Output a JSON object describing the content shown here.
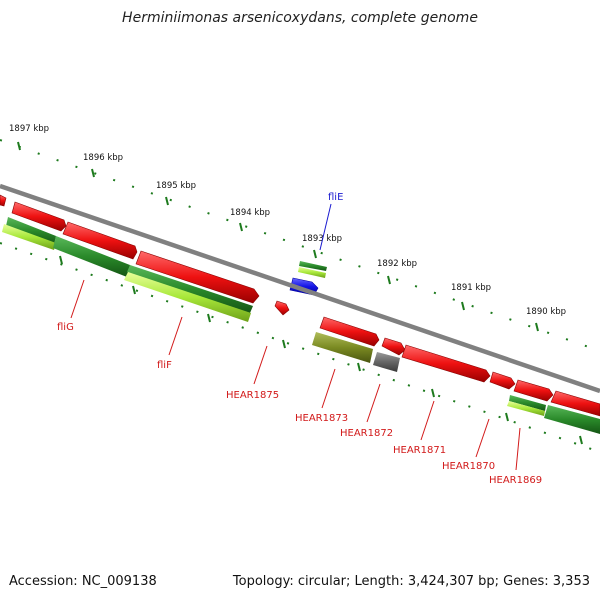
{
  "title": "Herminiimonas arsenicoxydans, complete genome",
  "accession": "Accession: NC_009138",
  "summary": "Topology: circular; Length: 3,424,307 bp; Genes: 3,353",
  "kbp_labels": [
    "1897 kbp",
    "1896 kbp",
    "1895 kbp",
    "1894 kbp",
    "1893 kbp",
    "1892 kbp",
    "1891 kbp",
    "1890 kbp"
  ],
  "gene_labels": [
    {
      "text": "fliE",
      "color": "#1b1bd0"
    },
    {
      "text": "fliG",
      "color": "#d21a1a"
    },
    {
      "text": "fliF",
      "color": "#d21a1a"
    },
    {
      "text": "HEAR1875",
      "color": "#d21a1a"
    },
    {
      "text": "HEAR1873",
      "color": "#d21a1a"
    },
    {
      "text": "HEAR1872",
      "color": "#d21a1a"
    },
    {
      "text": "HEAR1871",
      "color": "#d21a1a"
    },
    {
      "text": "HEAR1870",
      "color": "#d21a1a"
    },
    {
      "text": "HEAR1869",
      "color": "#d21a1a"
    }
  ],
  "colors": {
    "gene": "#ee1111",
    "blue_gene": "#1414e6",
    "cog_dark_green": "#2a8a2a",
    "cog_light_green": "#a8e83a",
    "cog_olive": "#7a8a22",
    "cog_gray": "#666666",
    "tick": "#1d7a1d",
    "backbone": "#808080"
  }
}
